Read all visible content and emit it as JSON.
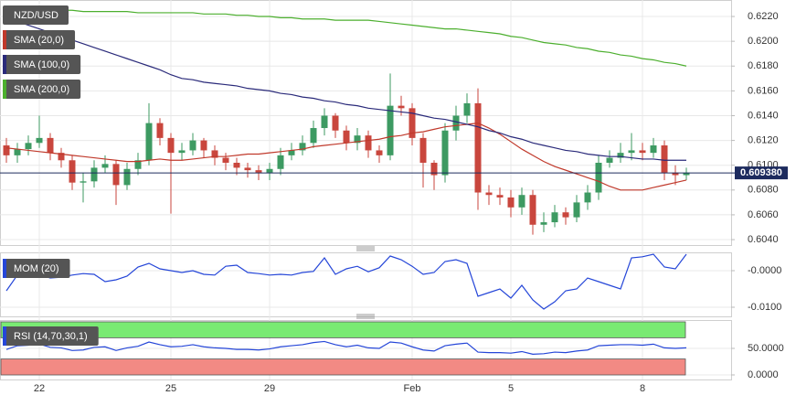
{
  "chart_data": [
    {
      "type": "candlestick",
      "title": "NZD/USD",
      "categories": [
        null,
        null,
        null,
        "22",
        null,
        null,
        null,
        null,
        null,
        null,
        null,
        null,
        null,
        null,
        null,
        "25",
        null,
        null,
        null,
        null,
        null,
        null,
        null,
        null,
        "29",
        null,
        null,
        null,
        null,
        null,
        null,
        null,
        null,
        null,
        null,
        null,
        null,
        "Feb",
        null,
        null,
        null,
        null,
        null,
        null,
        null,
        null,
        "5",
        null,
        null,
        null,
        null,
        null,
        null,
        null,
        null,
        null,
        null,
        null,
        "8",
        null,
        null,
        null,
        null
      ],
      "open": [
        0.6116,
        0.6108,
        0.6113,
        0.6118,
        0.6122,
        0.611,
        0.6104,
        0.6086,
        0.6087,
        0.6098,
        0.6101,
        0.6084,
        0.6097,
        0.6104,
        0.6134,
        0.6122,
        0.611,
        0.6112,
        0.612,
        0.6112,
        0.6106,
        0.6102,
        0.6098,
        0.6096,
        0.6094,
        0.6097,
        0.6108,
        0.6112,
        0.6118,
        0.613,
        0.614,
        0.6128,
        0.6118,
        0.6124,
        0.6112,
        0.6108,
        0.6148,
        0.6146,
        0.6122,
        0.6102,
        0.6092,
        0.6128,
        0.614,
        0.615,
        0.6078,
        0.6076,
        0.6074,
        0.6066,
        0.6076,
        0.6052,
        0.6054,
        0.6062,
        0.6058,
        0.607,
        0.6078,
        0.6102,
        0.6106,
        0.611,
        0.6112,
        0.611,
        0.6116,
        0.6094,
        0.6092
      ],
      "high": [
        0.6122,
        0.6118,
        0.6124,
        0.614,
        0.6126,
        0.6114,
        0.6108,
        0.6094,
        0.6104,
        0.6108,
        0.6104,
        0.6102,
        0.611,
        0.615,
        0.6138,
        0.6126,
        0.6118,
        0.6126,
        0.6122,
        0.6116,
        0.611,
        0.6106,
        0.6102,
        0.61,
        0.6102,
        0.6114,
        0.6118,
        0.6124,
        0.6136,
        0.6146,
        0.6142,
        0.6132,
        0.613,
        0.6128,
        0.6116,
        0.6174,
        0.6156,
        0.615,
        0.6126,
        0.6104,
        0.6134,
        0.6148,
        0.6158,
        0.6162,
        0.6084,
        0.6082,
        0.608,
        0.6082,
        0.608,
        0.6062,
        0.6068,
        0.6066,
        0.6076,
        0.6084,
        0.6108,
        0.6112,
        0.6118,
        0.6126,
        0.6118,
        0.6122,
        0.612,
        0.61,
        0.6098
      ],
      "low": [
        0.6102,
        0.6102,
        0.6108,
        0.6114,
        0.6104,
        0.6098,
        0.608,
        0.607,
        0.6082,
        0.6094,
        0.6068,
        0.608,
        0.6092,
        0.61,
        0.6116,
        0.6061,
        0.6104,
        0.6108,
        0.6106,
        0.61,
        0.6096,
        0.6092,
        0.609,
        0.6088,
        0.6088,
        0.6092,
        0.6104,
        0.6108,
        0.6114,
        0.6124,
        0.6122,
        0.6112,
        0.6112,
        0.6106,
        0.6102,
        0.6104,
        0.614,
        0.6116,
        0.6082,
        0.608,
        0.6086,
        0.612,
        0.6134,
        0.6064,
        0.6068,
        0.6068,
        0.6058,
        0.606,
        0.6044,
        0.6046,
        0.605,
        0.6052,
        0.6054,
        0.6064,
        0.6072,
        0.6098,
        0.6102,
        0.6104,
        0.6104,
        0.6106,
        0.6088,
        0.6084,
        0.6088
      ],
      "close": [
        0.6108,
        0.6113,
        0.6118,
        0.6122,
        0.611,
        0.6104,
        0.6086,
        0.6087,
        0.6098,
        0.6101,
        0.6084,
        0.6097,
        0.6104,
        0.6134,
        0.6122,
        0.611,
        0.6112,
        0.612,
        0.6112,
        0.6106,
        0.6102,
        0.6098,
        0.6096,
        0.6094,
        0.6097,
        0.6108,
        0.6112,
        0.6118,
        0.613,
        0.614,
        0.6128,
        0.6118,
        0.6124,
        0.6112,
        0.6108,
        0.6148,
        0.6146,
        0.6122,
        0.6102,
        0.6092,
        0.6128,
        0.614,
        0.615,
        0.6078,
        0.6076,
        0.6074,
        0.6066,
        0.6076,
        0.6052,
        0.6054,
        0.6062,
        0.6058,
        0.607,
        0.6078,
        0.6102,
        0.6106,
        0.611,
        0.6112,
        0.611,
        0.6116,
        0.6094,
        0.6092,
        0.6094
      ],
      "up_color": "#3d9a62",
      "down_color": "#c9463d",
      "series": [
        {
          "name": "SMA (20,0)",
          "color": "#c0392b",
          "values": [
            0.6114,
            0.6113,
            0.6112,
            0.6111,
            0.611,
            0.6109,
            0.6108,
            0.6107,
            0.6106,
            0.6105,
            0.6104,
            0.6103,
            0.6103,
            0.6104,
            0.6105,
            0.6104,
            0.6104,
            0.6105,
            0.6106,
            0.6107,
            0.6107,
            0.6108,
            0.6109,
            0.6109,
            0.611,
            0.6111,
            0.6112,
            0.6113,
            0.6115,
            0.6116,
            0.6117,
            0.6118,
            0.6119,
            0.612,
            0.6121,
            0.6123,
            0.6124,
            0.6126,
            0.6127,
            0.6129,
            0.6131,
            0.6132,
            0.6133,
            0.6134,
            0.613,
            0.6125,
            0.6119,
            0.6113,
            0.6108,
            0.6103,
            0.6099,
            0.6096,
            0.6093,
            0.609,
            0.6087,
            0.6083,
            0.608,
            0.608,
            0.608,
            0.6082,
            0.6084,
            0.6086,
            0.6088
          ]
        },
        {
          "name": "SMA (100,0)",
          "color": "#2a2a7a",
          "values": [
            0.6219,
            0.6216,
            0.6213,
            0.621,
            0.6207,
            0.6204,
            0.6201,
            0.6198,
            0.6195,
            0.6192,
            0.6189,
            0.6186,
            0.6183,
            0.618,
            0.6177,
            0.6173,
            0.617,
            0.6169,
            0.6167,
            0.6166,
            0.6165,
            0.6164,
            0.6162,
            0.6161,
            0.616,
            0.6158,
            0.6157,
            0.6155,
            0.6154,
            0.6152,
            0.6151,
            0.6149,
            0.6148,
            0.6146,
            0.6145,
            0.6144,
            0.6143,
            0.6142,
            0.614,
            0.6138,
            0.6137,
            0.6135,
            0.6133,
            0.6131,
            0.6128,
            0.6126,
            0.6123,
            0.6121,
            0.6118,
            0.6116,
            0.6114,
            0.6112,
            0.6111,
            0.6109,
            0.6108,
            0.6107,
            0.6107,
            0.6106,
            0.6105,
            0.6105,
            0.6104,
            0.6104,
            0.6104
          ]
        },
        {
          "name": "SMA (200,0)",
          "color": "#4caf2e",
          "values": [
            0.6226,
            0.6226,
            0.6226,
            0.6225,
            0.6225,
            0.6225,
            0.6225,
            0.6224,
            0.6224,
            0.6224,
            0.6224,
            0.6224,
            0.6223,
            0.6223,
            0.6223,
            0.6223,
            0.6223,
            0.6223,
            0.6222,
            0.6222,
            0.6222,
            0.6221,
            0.6221,
            0.622,
            0.622,
            0.6219,
            0.6219,
            0.6218,
            0.6218,
            0.6218,
            0.6217,
            0.6217,
            0.6217,
            0.6217,
            0.6216,
            0.6215,
            0.6214,
            0.6213,
            0.6212,
            0.6211,
            0.621,
            0.621,
            0.6209,
            0.6208,
            0.6207,
            0.6206,
            0.6204,
            0.6203,
            0.6201,
            0.6199,
            0.6198,
            0.6197,
            0.6195,
            0.6194,
            0.6192,
            0.6191,
            0.6189,
            0.6188,
            0.6186,
            0.6185,
            0.6183,
            0.6182,
            0.618
          ]
        }
      ],
      "last_price": {
        "value": 0.60938,
        "label": "0.609380"
      },
      "last_price_color": "#1d2b5e",
      "ylim": [
        0.60356,
        0.62333
      ],
      "yticks": [
        {
          "value": 0.604,
          "label": "0.6040"
        },
        {
          "value": 0.606,
          "label": "0.6060"
        },
        {
          "value": 0.608,
          "label": "0.6080"
        },
        {
          "value": 0.61,
          "label": "0.6100"
        },
        {
          "value": 0.612,
          "label": "0.6120"
        },
        {
          "value": 0.614,
          "label": "0.6140"
        },
        {
          "value": 0.616,
          "label": "0.6160"
        },
        {
          "value": 0.618,
          "label": "0.6180"
        },
        {
          "value": 0.62,
          "label": "0.6200"
        },
        {
          "value": 0.622,
          "label": "0.6220"
        }
      ],
      "grid": true
    },
    {
      "type": "line",
      "series": [
        {
          "name": "MOM (20)",
          "color": "#2546d8",
          "values": [
            -0.0055,
            -0.0012,
            -0.0008,
            -0.001,
            -0.002,
            -0.0018,
            -0.0012,
            -0.0008,
            -0.001,
            -0.003,
            -0.0025,
            -0.0015,
            0.001,
            0.002,
            0.0005,
            0.0,
            -0.0005,
            0.0,
            -0.001,
            -0.0012,
            0.0012,
            0.0015,
            -0.0005,
            -0.0008,
            -0.0012,
            -0.001,
            -0.0012,
            -0.0005,
            -0.0002,
            0.0035,
            -0.001,
            0.0005,
            0.0012,
            -0.0003,
            0.0008,
            0.004,
            0.003,
            0.0012,
            -0.001,
            -0.0005,
            0.0025,
            0.003,
            0.002,
            -0.007,
            -0.006,
            -0.005,
            -0.0075,
            -0.004,
            -0.008,
            -0.0105,
            -0.0085,
            -0.0055,
            -0.005,
            -0.002,
            -0.003,
            -0.004,
            -0.005,
            0.0035,
            0.0038,
            0.0045,
            0.001,
            0.0005,
            0.0045
          ]
        }
      ],
      "ylim": [
        -0.0125,
        0.005
      ],
      "yticks": [
        {
          "value": -0.01,
          "label": "-0.0100"
        },
        {
          "value": 0,
          "label": "-0.0000"
        }
      ],
      "grid": true
    },
    {
      "type": "line",
      "series": [
        {
          "name": "RSI (14,70,30,1)",
          "color": "#2546d8",
          "values": [
            48,
            55,
            56,
            58,
            52,
            51,
            46,
            47,
            52,
            53,
            46,
            51,
            54,
            62,
            57,
            53,
            54,
            57,
            53,
            51,
            50,
            48,
            48,
            47,
            49,
            53,
            55,
            57,
            61,
            63,
            57,
            53,
            56,
            51,
            50,
            62,
            60,
            53,
            47,
            45,
            55,
            58,
            60,
            43,
            42,
            42,
            41,
            44,
            39,
            40,
            43,
            42,
            45,
            47,
            55,
            56,
            57,
            57,
            56,
            58,
            51,
            50,
            51
          ]
        }
      ],
      "bands": [
        {
          "from": 70,
          "to": 100,
          "color": "#79ea73"
        },
        {
          "from": 0,
          "to": 30,
          "color": "#f28a84"
        }
      ],
      "ylim": [
        -8.6,
        103.4
      ],
      "yticks": [
        {
          "value": 0,
          "label": "0.0000"
        },
        {
          "value": 50,
          "label": "50.0000"
        }
      ],
      "grid": true
    }
  ]
}
